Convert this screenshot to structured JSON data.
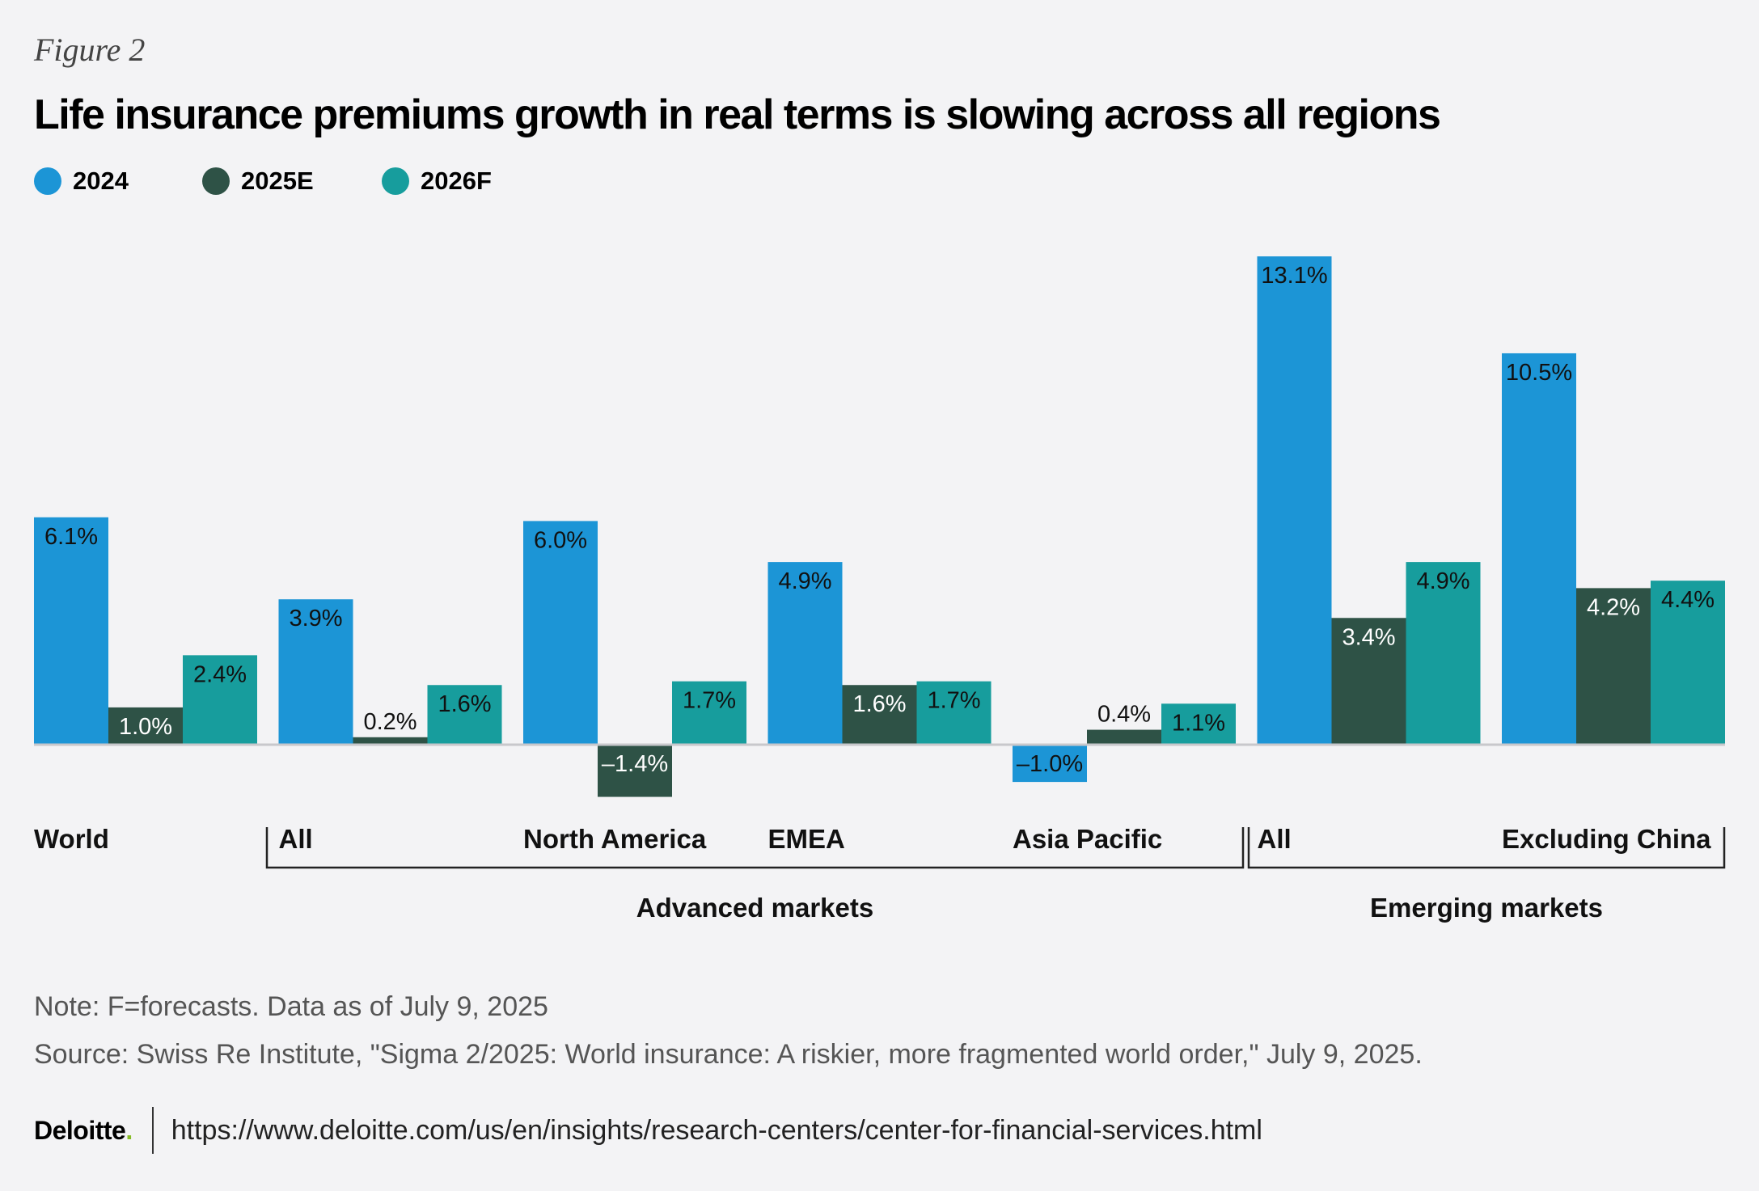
{
  "figure_label": "Figure 2",
  "title": "Life insurance premiums growth in real terms is slowing across all regions",
  "note": "Note: F=forecasts. Data as of July 9, 2025",
  "source": "Source: Swiss Re Institute, \"Sigma 2/2025: World insurance: A riskier, more fragmented world order,\" July 9, 2025.",
  "footer": {
    "logo": "Deloitte",
    "logo_dot": ".",
    "url": "https://www.deloitte.com/us/en/insights/research-centers/center-for-financial-services.html"
  },
  "colors": {
    "2024": "#1c95d6",
    "2025E": "#2e5246",
    "2026F": "#179d9d",
    "baseline": "#c8c8cc"
  },
  "chart_data": {
    "type": "bar",
    "title": "Life insurance premiums growth in real terms is slowing across all regions",
    "categories": [
      "World",
      "All",
      "North America",
      "EMEA",
      "Asia Pacific",
      "All",
      "Excluding China"
    ],
    "groups": [
      {
        "label": "Advanced markets",
        "categories": [
          "All",
          "North America",
          "EMEA",
          "Asia Pacific"
        ]
      },
      {
        "label": "Emerging markets",
        "categories": [
          "All",
          "Excluding China"
        ]
      }
    ],
    "series": [
      {
        "name": "2024",
        "values": [
          6.1,
          3.9,
          6.0,
          4.9,
          -1.0,
          13.1,
          10.5
        ],
        "labels": [
          "6.1%",
          "3.9%",
          "6.0%",
          "4.9%",
          "–1.0%",
          "13.1%",
          "10.5%"
        ]
      },
      {
        "name": "2025E",
        "values": [
          1.0,
          0.2,
          -1.4,
          1.6,
          0.4,
          3.4,
          4.2
        ],
        "labels": [
          "1.0%",
          "0.2%",
          "–1.4%",
          "1.6%",
          "0.4%",
          "3.4%",
          "4.2%"
        ]
      },
      {
        "name": "2026F",
        "values": [
          2.4,
          1.6,
          1.7,
          1.7,
          1.1,
          4.9,
          4.4
        ],
        "labels": [
          "2.4%",
          "1.6%",
          "1.7%",
          "1.7%",
          "1.1%",
          "4.9%",
          "4.4%"
        ]
      }
    ],
    "ylim": [
      -1.4,
      13.1
    ],
    "xlabel": "",
    "ylabel": "",
    "grid": false,
    "legend": "top-left"
  }
}
